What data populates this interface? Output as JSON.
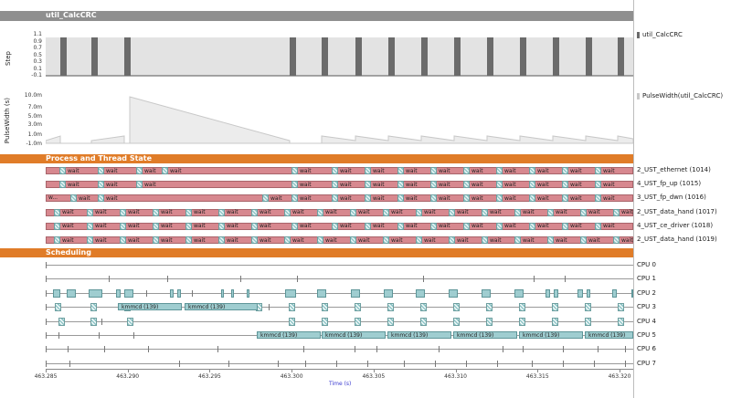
{
  "signal_view": {
    "title": "util_CalcCRC",
    "step_chart": {
      "ylabel": "Step",
      "ticks": [
        "1.1",
        "0.9",
        "0.7",
        "0.5",
        "0.3",
        "0.1",
        "-0.1"
      ],
      "legend": "util_CalcCRC",
      "color": "#6b6b6b"
    },
    "pulse_chart": {
      "ylabel": "PulseWidth (s)",
      "ticks": [
        "10.0m",
        "7.0m",
        "5.0m",
        "3.0m",
        "1.0m",
        "-1.0m"
      ],
      "legend": "PulseWidth(util_CalcCRC)",
      "color": "#c8c8c8"
    }
  },
  "process_section": {
    "title": "Process and Thread State",
    "wait_label": "wait",
    "threads": [
      {
        "name": "2_UST_ethernet (1014)"
      },
      {
        "name": "4_UST_fp_up (1015)"
      },
      {
        "name": "3_UST_fp_dwn (1016)",
        "prefix": "w..."
      },
      {
        "name": "2_UST_data_hand (1017)"
      },
      {
        "name": "4_UST_ce_driver (1018)"
      },
      {
        "name": "2_UST_data_hand (1019)"
      }
    ]
  },
  "scheduling_section": {
    "title": "Scheduling",
    "process_label": "kmmcd (139)",
    "cpus": [
      "CPU 0",
      "CPU 1",
      "CPU 2",
      "CPU 3",
      "CPU 4",
      "CPU 5",
      "CPU 6",
      "CPU 7"
    ]
  },
  "time_axis": {
    "ticks": [
      "463.285",
      "463.290",
      "463.295",
      "463.300",
      "463.305",
      "463.310",
      "463.315",
      "463.320"
    ],
    "label": "Time (s)"
  },
  "colors": {
    "section_gray": "#8f8f8f",
    "section_orange": "#e07c28",
    "thread_running": "#d7888f",
    "cpu_busy": "#9fcdd0",
    "time_label": "#3a3ad0"
  }
}
